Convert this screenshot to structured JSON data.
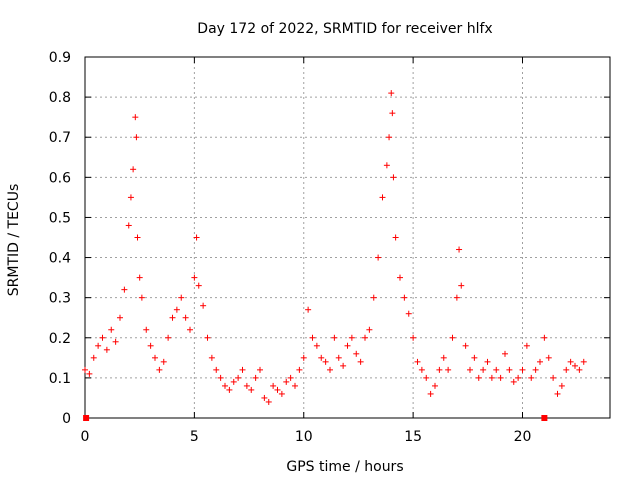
{
  "chart_data": {
    "type": "scatter",
    "title": "Day 172 of 2022, SRMTID for receiver hlfx",
    "xlabel": "GPS time / hours",
    "ylabel": "SRMTID / TECUs",
    "xlim": [
      0,
      24
    ],
    "ylim": [
      0,
      0.9
    ],
    "xticks": [
      0,
      5,
      10,
      15,
      20
    ],
    "yticks": [
      0,
      0.1,
      0.2,
      0.3,
      0.4,
      0.5,
      0.6,
      0.7,
      0.8,
      0.9
    ],
    "xtick_labels": [
      "0",
      "5",
      "10",
      "15",
      "20"
    ],
    "ytick_labels": [
      "0",
      "0.1",
      "0.2",
      "0.3",
      "0.4",
      "0.5",
      "0.6",
      "0.7",
      "0.8",
      "0.9"
    ],
    "grid": true,
    "marker": "plus",
    "series_color": "#ff0000",
    "gap_markers_x": [
      0.05,
      21.0
    ],
    "series": [
      {
        "name": "SRMTID",
        "x": [
          0.0,
          0.2,
          0.4,
          0.6,
          0.8,
          1.0,
          1.2,
          1.4,
          1.6,
          1.8,
          2.0,
          2.1,
          2.2,
          2.3,
          2.35,
          2.4,
          2.5,
          2.6,
          2.8,
          3.0,
          3.2,
          3.4,
          3.6,
          3.8,
          4.0,
          4.2,
          4.4,
          4.6,
          4.8,
          5.0,
          5.1,
          5.2,
          5.4,
          5.6,
          5.8,
          6.0,
          6.2,
          6.4,
          6.6,
          6.8,
          7.0,
          7.2,
          7.4,
          7.6,
          7.8,
          8.0,
          8.2,
          8.4,
          8.6,
          8.8,
          9.0,
          9.2,
          9.4,
          9.6,
          9.8,
          10.0,
          10.2,
          10.4,
          10.6,
          10.8,
          11.0,
          11.2,
          11.4,
          11.6,
          11.8,
          12.0,
          12.2,
          12.4,
          12.6,
          12.8,
          13.0,
          13.2,
          13.4,
          13.6,
          13.8,
          13.9,
          14.0,
          14.05,
          14.1,
          14.2,
          14.4,
          14.6,
          14.8,
          15.0,
          15.2,
          15.4,
          15.6,
          15.8,
          16.0,
          16.2,
          16.4,
          16.6,
          16.8,
          17.0,
          17.1,
          17.2,
          17.4,
          17.6,
          17.8,
          18.0,
          18.2,
          18.4,
          18.6,
          18.8,
          19.0,
          19.2,
          19.4,
          19.6,
          19.8,
          20.0,
          20.2,
          20.4,
          20.6,
          20.8,
          21.0,
          21.2,
          21.4,
          21.6,
          21.8,
          22.0,
          22.2,
          22.4,
          22.6,
          22.8
        ],
        "y": [
          0.12,
          0.11,
          0.15,
          0.18,
          0.2,
          0.17,
          0.22,
          0.19,
          0.25,
          0.32,
          0.48,
          0.55,
          0.62,
          0.75,
          0.7,
          0.45,
          0.35,
          0.3,
          0.22,
          0.18,
          0.15,
          0.12,
          0.14,
          0.2,
          0.25,
          0.27,
          0.3,
          0.25,
          0.22,
          0.35,
          0.45,
          0.33,
          0.28,
          0.2,
          0.15,
          0.12,
          0.1,
          0.08,
          0.07,
          0.09,
          0.1,
          0.12,
          0.08,
          0.07,
          0.1,
          0.12,
          0.05,
          0.04,
          0.08,
          0.07,
          0.06,
          0.09,
          0.1,
          0.08,
          0.12,
          0.15,
          0.27,
          0.2,
          0.18,
          0.15,
          0.14,
          0.12,
          0.2,
          0.15,
          0.13,
          0.18,
          0.2,
          0.16,
          0.14,
          0.2,
          0.22,
          0.3,
          0.4,
          0.55,
          0.63,
          0.7,
          0.81,
          0.76,
          0.6,
          0.45,
          0.35,
          0.3,
          0.26,
          0.2,
          0.14,
          0.12,
          0.1,
          0.06,
          0.08,
          0.12,
          0.15,
          0.12,
          0.2,
          0.3,
          0.42,
          0.33,
          0.18,
          0.12,
          0.15,
          0.1,
          0.12,
          0.14,
          0.1,
          0.12,
          0.1,
          0.16,
          0.12,
          0.09,
          0.1,
          0.12,
          0.18,
          0.1,
          0.12,
          0.14,
          0.2,
          0.15,
          0.1,
          0.06,
          0.08,
          0.12,
          0.14,
          0.13,
          0.12,
          0.14
        ]
      }
    ]
  }
}
